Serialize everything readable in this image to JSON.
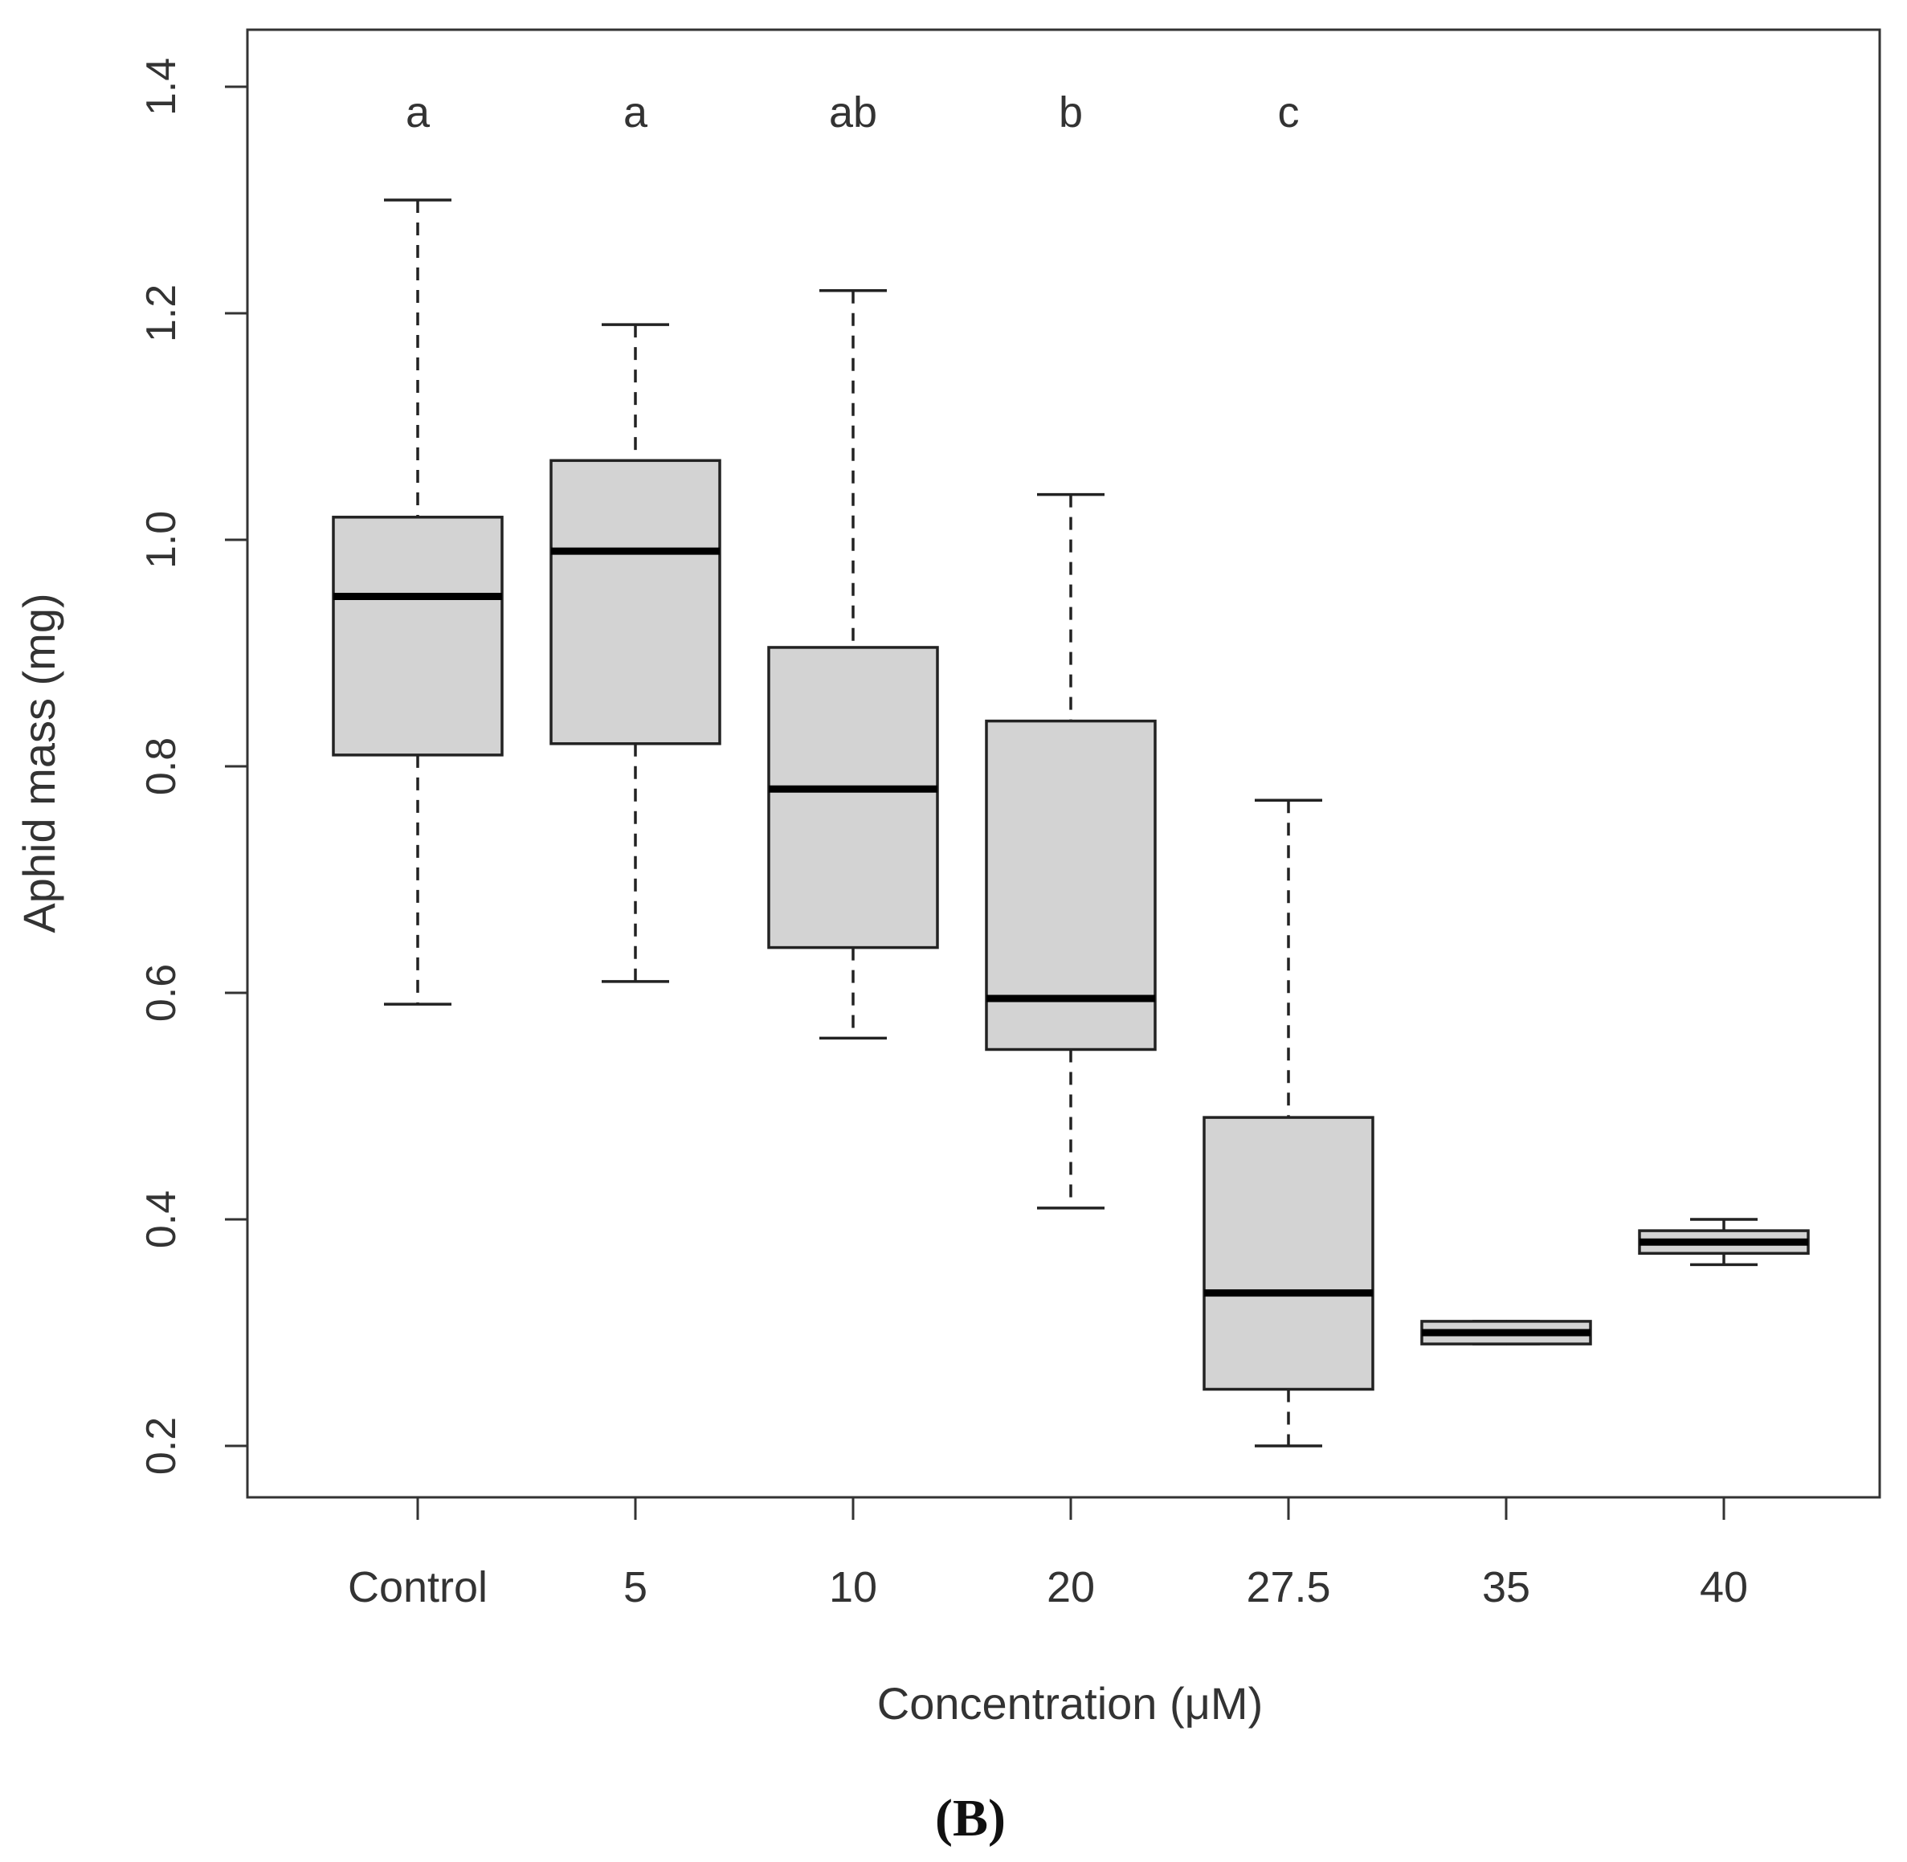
{
  "chart_data": {
    "type": "boxplot",
    "title": "",
    "xlabel": "Concentration (μM)",
    "ylabel": "Aphid mass (mg)",
    "ylim": [
      0.15,
      1.45
    ],
    "yticks": [
      "0.2",
      "0.4",
      "0.6",
      "0.8",
      "1.0",
      "1.2",
      "1.4"
    ],
    "ytick_values": [
      0.2,
      0.4,
      0.6,
      0.8,
      1.0,
      1.2,
      1.4
    ],
    "categories": [
      "Control",
      "5",
      "10",
      "20",
      "27.5",
      "35",
      "40"
    ],
    "significance_letters": [
      "a",
      "a",
      "ab",
      "b",
      "c",
      "",
      ""
    ],
    "boxes": [
      {
        "category": "Control",
        "min": 0.59,
        "q1": 0.81,
        "median": 0.95,
        "q3": 1.02,
        "max": 1.3
      },
      {
        "category": "5",
        "min": 0.61,
        "q1": 0.82,
        "median": 0.99,
        "q3": 1.07,
        "max": 1.19
      },
      {
        "category": "10",
        "min": 0.56,
        "q1": 0.64,
        "median": 0.78,
        "q3": 0.905,
        "max": 1.22
      },
      {
        "category": "20",
        "min": 0.41,
        "q1": 0.55,
        "median": 0.595,
        "q3": 0.84,
        "max": 1.04
      },
      {
        "category": "27.5",
        "min": 0.2,
        "q1": 0.25,
        "median": 0.335,
        "q3": 0.49,
        "max": 0.77
      },
      {
        "category": "35",
        "min": 0.29,
        "q1": 0.29,
        "median": 0.3,
        "q3": 0.31,
        "max": 0.31
      },
      {
        "category": "40",
        "min": 0.36,
        "q1": 0.37,
        "median": 0.38,
        "q3": 0.39,
        "max": 0.4
      }
    ],
    "grid": false,
    "box_fill": "#d3d3d3",
    "line_color": "#222222"
  },
  "panel_label": "(B)"
}
